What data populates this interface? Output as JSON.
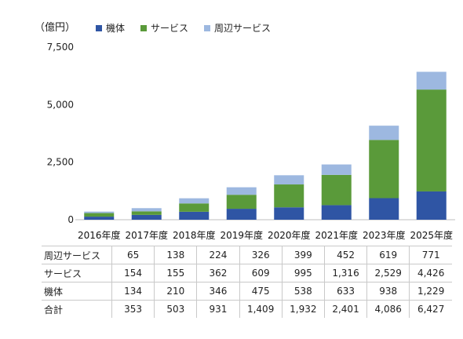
{
  "chart_data": {
    "type": "bar",
    "stacked": true,
    "unit_label": "（億円）",
    "categories": [
      "2016年度",
      "2017年度",
      "2018年度",
      "2019年度",
      "2020年度",
      "2021年度",
      "2023年度",
      "2025年度"
    ],
    "series": [
      {
        "name": "機体",
        "color": "#2f55a4",
        "values": [
          134,
          210,
          346,
          475,
          538,
          633,
          938,
          1229
        ]
      },
      {
        "name": "サービス",
        "color": "#5a9a3a",
        "values": [
          154,
          155,
          362,
          609,
          995,
          1316,
          2529,
          4426
        ]
      },
      {
        "name": "周辺サービス",
        "color": "#9db8e0",
        "values": [
          65,
          138,
          224,
          326,
          399,
          452,
          619,
          771
        ]
      }
    ],
    "ylim": [
      0,
      7500
    ],
    "yticks": [
      "0",
      "2,500",
      "5,000",
      "7,500"
    ],
    "ytick_values": [
      0,
      2500,
      5000,
      7500
    ],
    "grid": false,
    "legend_position": "top"
  },
  "table": {
    "rows": [
      {
        "label": "周辺サービス",
        "cells": [
          "65",
          "138",
          "224",
          "326",
          "399",
          "452",
          "619",
          "771"
        ]
      },
      {
        "label": "サービス",
        "cells": [
          "154",
          "155",
          "362",
          "609",
          "995",
          "1,316",
          "2,529",
          "4,426"
        ]
      },
      {
        "label": "機体",
        "cells": [
          "134",
          "210",
          "346",
          "475",
          "538",
          "633",
          "938",
          "1,229"
        ]
      },
      {
        "label": "合計",
        "cells": [
          "353",
          "503",
          "931",
          "1,409",
          "1,932",
          "2,401",
          "4,086",
          "6,427"
        ]
      }
    ]
  }
}
